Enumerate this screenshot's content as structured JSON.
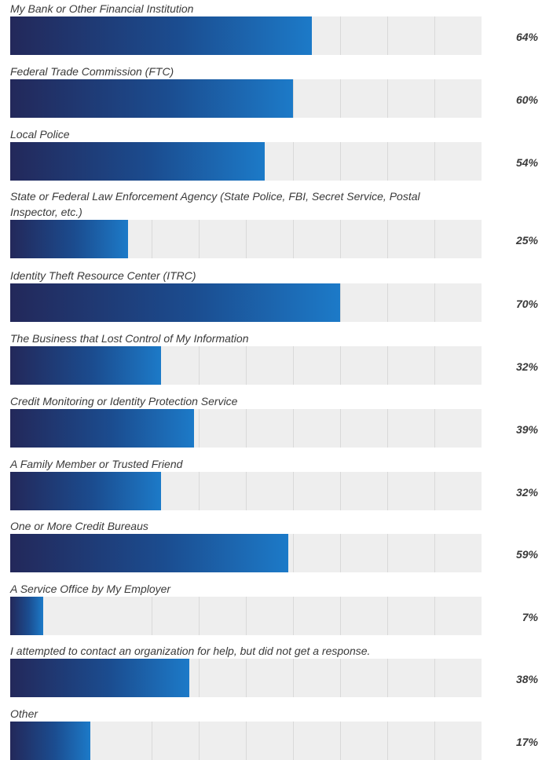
{
  "chart_data": {
    "type": "bar",
    "orientation": "horizontal",
    "value_suffix": "%",
    "xlim": [
      0,
      100
    ],
    "grid": true,
    "colors": {
      "bar_start": "#23285a",
      "bar_end": "#1c7ac8",
      "track": "#eeeeee",
      "grid": "#d9d9d9",
      "text": "#3a3a3a"
    },
    "categories": [
      "My Bank or Other Financial Institution",
      "Federal Trade Commission (FTC)",
      "Local Police",
      "State or Federal Law Enforcement Agency (State Police, FBI, Secret Service, Postal Inspector, etc.)",
      "Identity Theft Resource Center (ITRC)",
      "The Business that Lost Control of My Information",
      "Credit Monitoring or Identity Protection Service",
      "A Family Member or Trusted Friend",
      "One or More Credit Bureaus",
      "A Service Office by My Employer",
      "I attempted to contact an organization for help, but did not get a response.",
      "Other"
    ],
    "values": [
      64,
      60,
      54,
      25,
      70,
      32,
      39,
      32,
      59,
      7,
      38,
      17
    ],
    "value_labels": [
      "64%",
      "60%",
      "54%",
      "25%",
      "70%",
      "32%",
      "39%",
      "32%",
      "59%",
      "7%",
      "38%",
      "17%"
    ]
  }
}
